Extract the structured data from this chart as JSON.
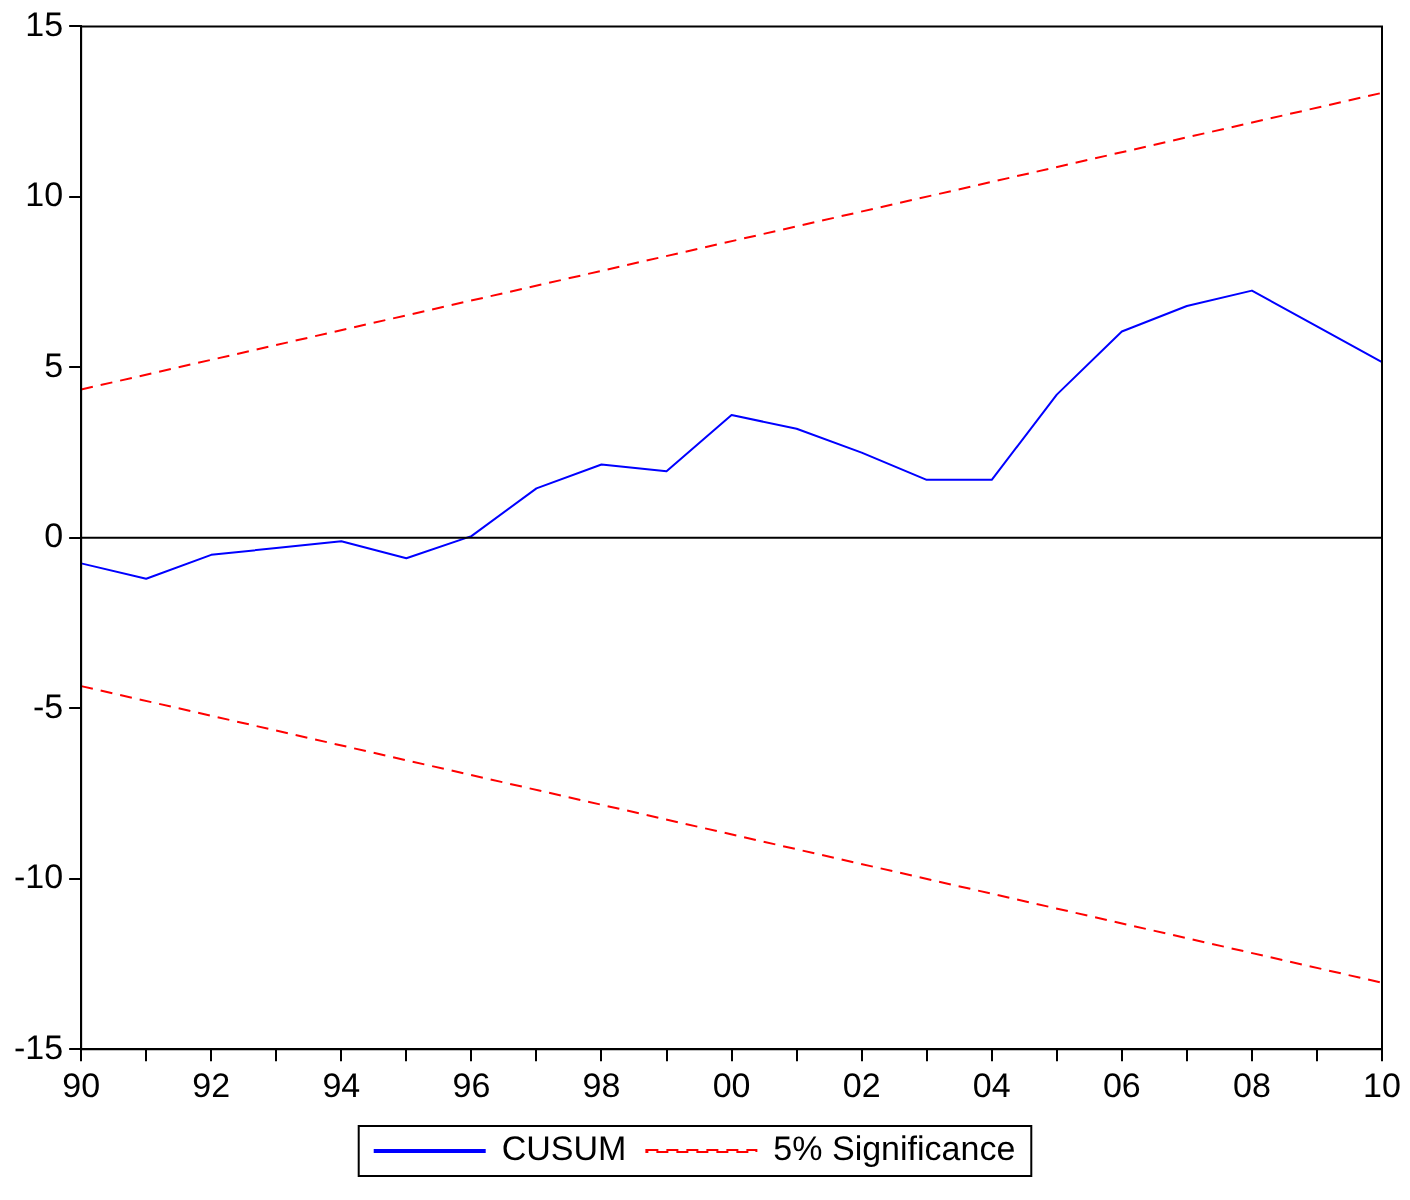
{
  "chart_data": {
    "type": "line",
    "x": [
      1990,
      1991,
      1992,
      1993,
      1994,
      1995,
      1996,
      1997,
      1998,
      1999,
      2000,
      2001,
      2002,
      2003,
      2004,
      2005,
      2006,
      2007,
      2008,
      2009,
      2010
    ],
    "series": [
      {
        "name": "CUSUM",
        "color": "#0000ff",
        "line_style": "solid",
        "values": [
          -0.75,
          -1.2,
          -0.5,
          -0.3,
          -0.1,
          -0.6,
          0.05,
          1.45,
          2.15,
          1.95,
          3.6,
          3.2,
          2.5,
          1.7,
          1.7,
          4.2,
          6.05,
          6.8,
          7.25,
          6.2,
          5.15
        ]
      },
      {
        "name": "5% Significance",
        "color": "#ff0000",
        "line_style": "dashed",
        "values": [
          4.35,
          null,
          null,
          null,
          null,
          null,
          null,
          null,
          null,
          null,
          null,
          null,
          null,
          null,
          null,
          null,
          null,
          null,
          null,
          null,
          13.05
        ]
      },
      {
        "color": "#ff0000",
        "line_style": "dashed",
        "values": [
          -4.35,
          null,
          null,
          null,
          null,
          null,
          null,
          null,
          null,
          null,
          null,
          null,
          null,
          null,
          null,
          null,
          null,
          null,
          null,
          null,
          -13.05
        ]
      }
    ],
    "xlim": [
      1990,
      2010
    ],
    "xticks": [
      {
        "value": 1990,
        "label": "90"
      },
      {
        "value": 1991,
        "label": null
      },
      {
        "value": 1992,
        "label": "92"
      },
      {
        "value": 1993,
        "label": null
      },
      {
        "value": 1994,
        "label": "94"
      },
      {
        "value": 1995,
        "label": null
      },
      {
        "value": 1996,
        "label": "96"
      },
      {
        "value": 1997,
        "label": null
      },
      {
        "value": 1998,
        "label": "98"
      },
      {
        "value": 1999,
        "label": null
      },
      {
        "value": 2000,
        "label": "00"
      },
      {
        "value": 2001,
        "label": null
      },
      {
        "value": 2002,
        "label": "02"
      },
      {
        "value": 2003,
        "label": null
      },
      {
        "value": 2004,
        "label": "04"
      },
      {
        "value": 2005,
        "label": null
      },
      {
        "value": 2006,
        "label": "06"
      },
      {
        "value": 2007,
        "label": null
      },
      {
        "value": 2008,
        "label": "08"
      },
      {
        "value": 2009,
        "label": null
      },
      {
        "value": 2010,
        "label": "10"
      }
    ],
    "ylim": [
      -15,
      15
    ],
    "yticks": [
      -15,
      -10,
      -5,
      0,
      5,
      10,
      15
    ],
    "ref_lines": [
      {
        "axis": "y",
        "value": 0,
        "color": "#000000"
      }
    ],
    "grid": false,
    "legend": "bottom",
    "marker": "none"
  }
}
